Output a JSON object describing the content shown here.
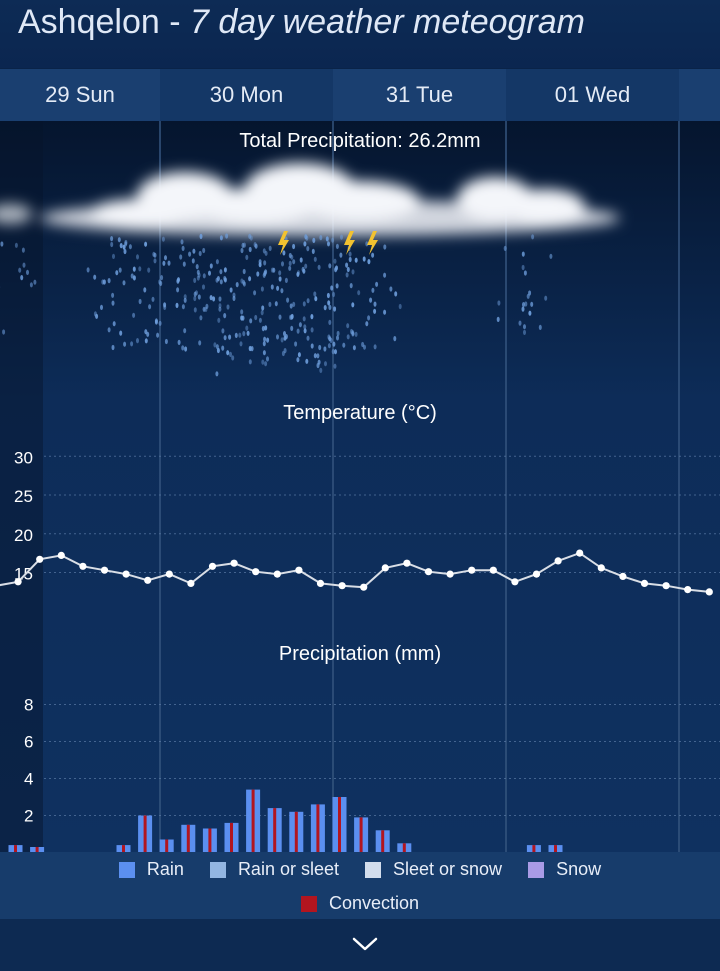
{
  "header": {
    "location": "Ashqelon",
    "separator": " - ",
    "subtitle": "7 day weather meteogram"
  },
  "days": [
    {
      "label": "29 Sun"
    },
    {
      "label": "30 Mon"
    },
    {
      "label": "31 Tue"
    },
    {
      "label": "01 Wed"
    }
  ],
  "total_precip_label": "Total Precipitation: 26.2mm",
  "colors": {
    "rain": "#5b8ff0",
    "rain_or_sleet": "#93b6e2",
    "sleet_or_snow": "#d3ddec",
    "snow": "#a99be6",
    "convection": "#b2151f",
    "temp_line": "#d9dee6"
  },
  "chart_data": [
    {
      "type": "line",
      "title": "Temperature (°C)",
      "xlabel": "",
      "ylabel": "",
      "ylim": [
        0,
        32
      ],
      "yticks": [
        15,
        20,
        25,
        30
      ],
      "grid": true,
      "x": [
        0,
        1,
        2,
        3,
        4,
        5,
        6,
        7,
        8,
        9,
        10,
        11,
        12,
        13,
        14,
        15,
        16,
        17,
        18,
        19,
        20,
        21,
        22,
        23,
        24,
        25,
        26,
        27,
        28,
        29,
        30,
        31,
        32,
        33
      ],
      "series": [
        {
          "values": [
            13.3,
            13.8,
            16.7,
            17.2,
            15.8,
            15.3,
            14.8,
            14.0,
            14.8,
            13.6,
            15.8,
            16.2,
            15.1,
            14.8,
            15.3,
            13.6,
            13.3,
            13.1,
            15.6,
            16.2,
            15.1,
            14.8,
            15.3,
            15.3,
            13.8,
            14.8,
            16.5,
            17.5,
            15.6,
            14.5,
            13.6,
            13.3,
            12.8,
            12.5
          ]
        }
      ]
    },
    {
      "type": "bar",
      "title": "Precipitation (mm)",
      "xlabel": "",
      "ylabel": "",
      "ylim": [
        0,
        9
      ],
      "yticks": [
        2,
        4,
        6,
        8
      ],
      "grid": true,
      "legend": "bottom",
      "legend_items": [
        "Rain",
        "Rain or sleet",
        "Sleet or snow",
        "Snow",
        "Convection"
      ],
      "x": [
        0,
        1,
        2,
        3,
        4,
        5,
        6,
        7,
        8,
        9,
        10,
        11,
        12,
        13,
        14,
        15,
        16,
        17,
        18,
        19,
        20,
        21,
        22,
        23,
        24,
        25,
        26,
        27,
        28,
        29,
        30,
        31,
        32,
        33
      ],
      "series": [
        {
          "name": "Rain",
          "values": [
            0.4,
            0.3,
            0,
            0,
            0,
            0.4,
            2.0,
            0.7,
            1.5,
            1.3,
            1.6,
            3.4,
            2.4,
            2.2,
            2.6,
            3.0,
            1.9,
            1.2,
            0.5,
            0,
            0,
            0,
            0,
            0,
            0.4,
            0.4,
            0,
            0,
            0,
            0,
            0,
            0,
            0,
            0
          ]
        },
        {
          "name": "Convection",
          "values": [
            0.4,
            0.3,
            0,
            0,
            0,
            0.4,
            2.0,
            0.7,
            1.5,
            1.3,
            1.6,
            3.4,
            2.4,
            2.2,
            2.6,
            3.0,
            1.9,
            1.2,
            0.5,
            0,
            0,
            0,
            0,
            0,
            0.4,
            0.4,
            0,
            0,
            0,
            0,
            0,
            0,
            0,
            0
          ]
        }
      ]
    }
  ]
}
